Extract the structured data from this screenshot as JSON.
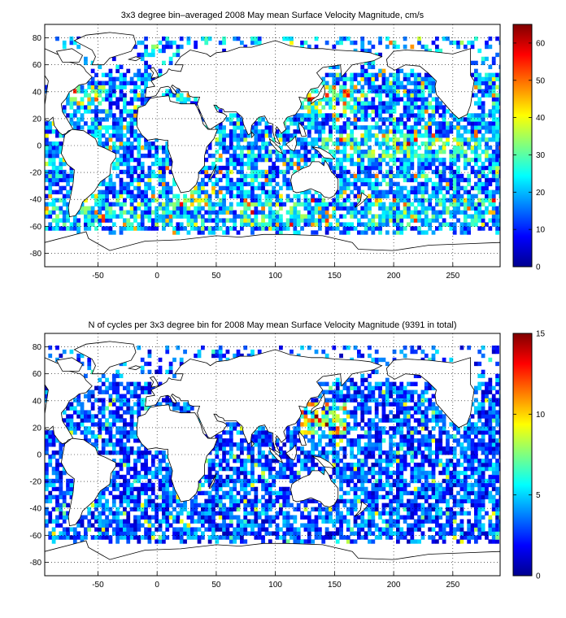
{
  "figure": {
    "background": "#ffffff",
    "colormap": "jet",
    "map_extent": {
      "lon": [
        -95,
        290
      ],
      "lat": [
        -90,
        90
      ]
    },
    "grid": {
      "style": "dotted",
      "visible": true
    }
  },
  "chart_data": [
    {
      "type": "heatmap",
      "title": "3x3 degree bin–averaged 2008 May mean Surface Velocity Magnitude, cm/s",
      "xlabel": "",
      "ylabel": "",
      "xticks": [
        -50,
        0,
        50,
        100,
        150,
        200,
        250
      ],
      "yticks": [
        -80,
        -60,
        -40,
        -20,
        0,
        20,
        40,
        60,
        80
      ],
      "xlim": [
        -95,
        290
      ],
      "ylim": [
        -90,
        90
      ],
      "bin_size_deg": 3,
      "colorbar": {
        "min": 0,
        "max": 65,
        "ticks": [
          0,
          10,
          20,
          30,
          40,
          50,
          60
        ]
      },
      "value_distribution": {
        "typical_range": [
          5,
          30
        ],
        "hot_spots": "western boundary currents (Kuroshio, Gulf Stream), equatorial Pacific, Agulhas, Southern Ocean"
      }
    },
    {
      "type": "heatmap",
      "title": "N of cycles per 3x3 degree bin for 2008 May mean Surface Velocity Magnitude (9391 in total)",
      "xlabel": "",
      "ylabel": "",
      "xticks": [
        -50,
        0,
        50,
        100,
        150,
        200,
        250
      ],
      "yticks": [
        -80,
        -60,
        -40,
        -20,
        0,
        20,
        40,
        60,
        80
      ],
      "xlim": [
        -95,
        290
      ],
      "ylim": [
        -90,
        90
      ],
      "bin_size_deg": 3,
      "total_cycles": 9391,
      "colorbar": {
        "min": 0,
        "max": 15,
        "ticks": [
          0,
          5,
          10,
          15
        ]
      },
      "value_distribution": {
        "typical_range": [
          1,
          6
        ],
        "hot_spots": "Kuroshio region, northwest Pacific"
      }
    }
  ]
}
